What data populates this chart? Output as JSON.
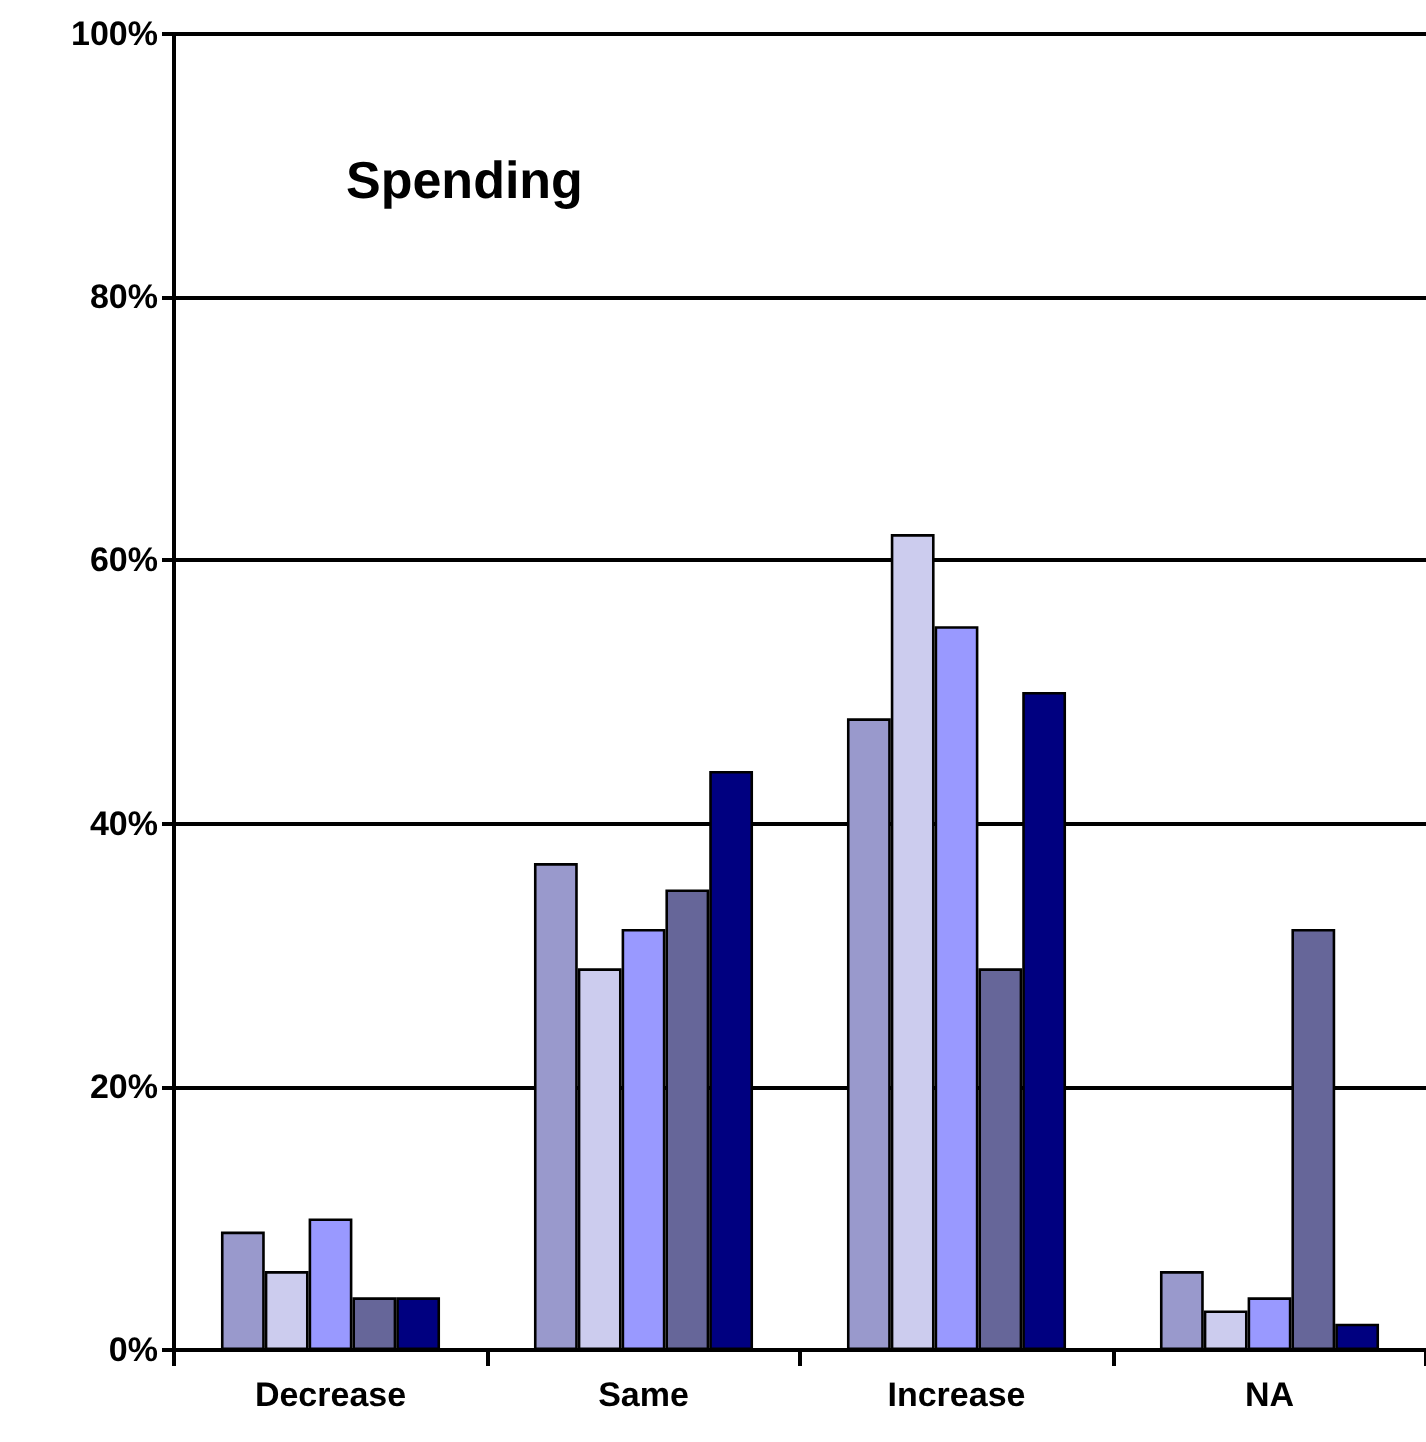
{
  "chart_data": {
    "type": "bar",
    "title": "Spending",
    "categories": [
      "Decrease",
      "Same",
      "Increase",
      "NA"
    ],
    "series": [
      {
        "color": "#9999cc",
        "values": [
          9,
          37,
          48,
          6
        ]
      },
      {
        "color": "#ccccee",
        "values": [
          6,
          29,
          62,
          3
        ]
      },
      {
        "color": "#9999ff",
        "values": [
          10,
          32,
          55,
          4
        ]
      },
      {
        "color": "#666699",
        "values": [
          4,
          35,
          29,
          32
        ]
      },
      {
        "color": "#000080",
        "values": [
          4,
          44,
          50,
          2
        ]
      }
    ],
    "ylim": [
      0,
      100
    ],
    "yticks": [
      {
        "value": 0,
        "label": "0%"
      },
      {
        "value": 20,
        "label": "20%"
      },
      {
        "value": 40,
        "label": "40%"
      },
      {
        "value": 60,
        "label": "60%"
      },
      {
        "value": 80,
        "label": "80%"
      },
      {
        "value": 100,
        "label": "100%"
      }
    ],
    "grid": "y"
  }
}
